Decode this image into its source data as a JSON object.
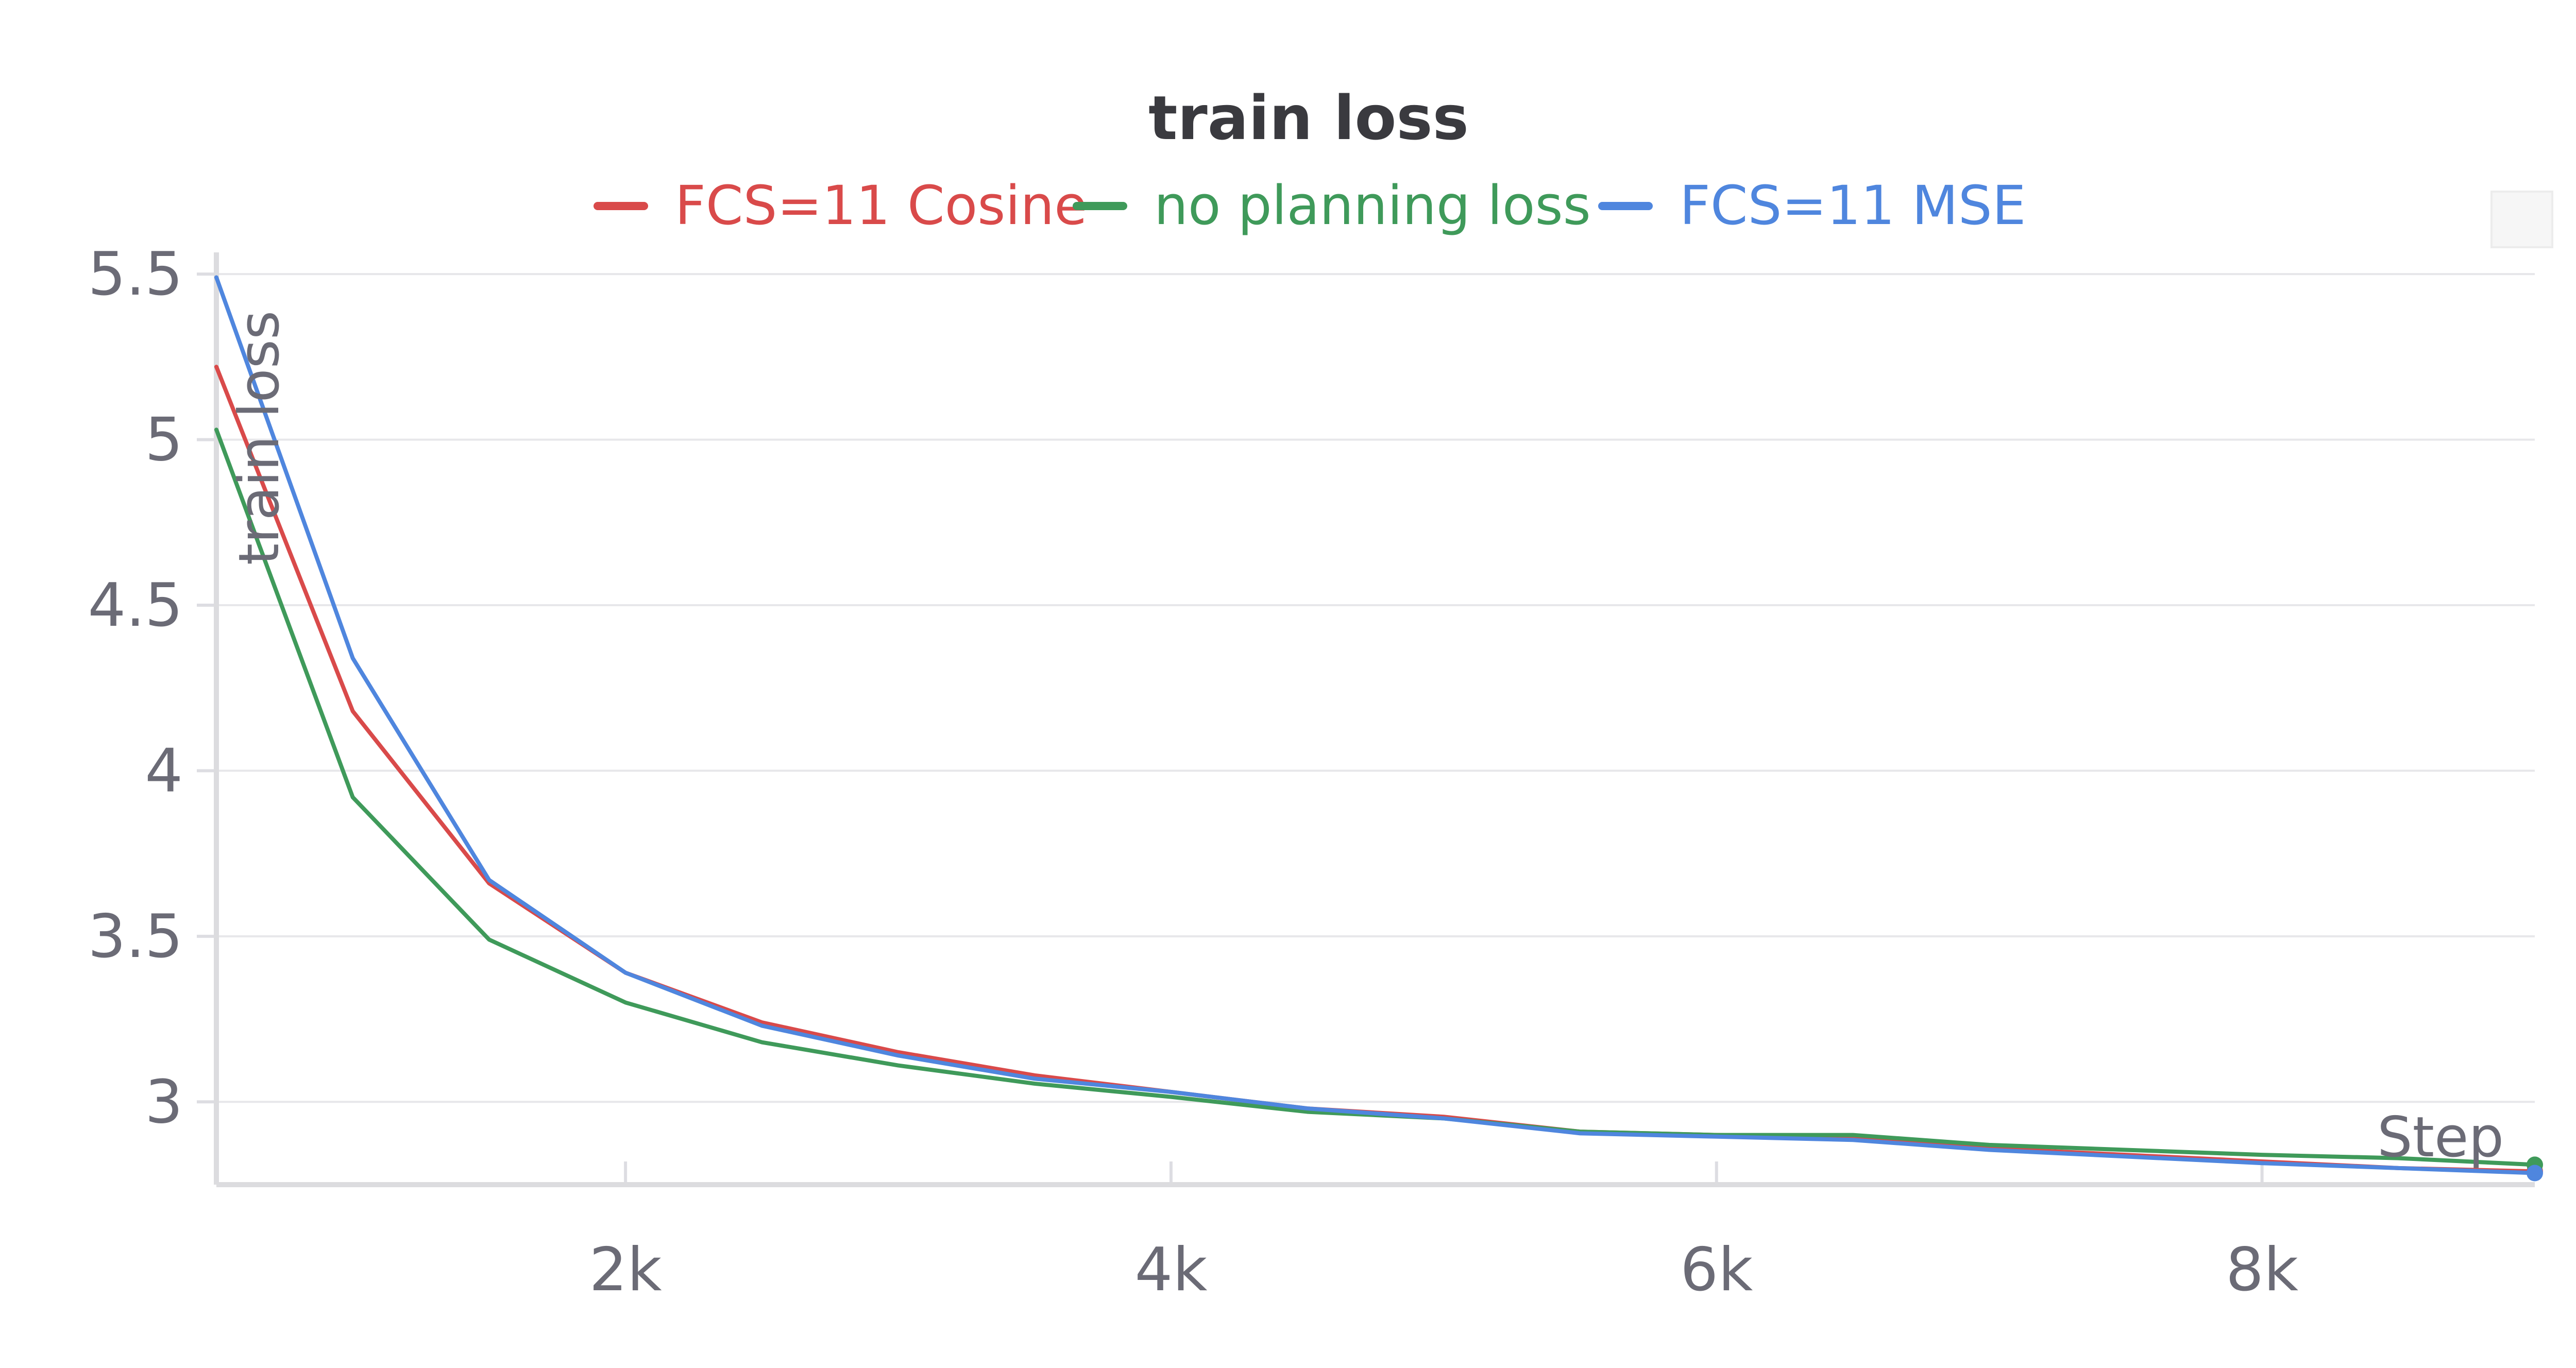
{
  "chart_data": {
    "type": "line",
    "title": "train loss",
    "xlabel": "Step",
    "ylabel": "train loss",
    "xlim": [
      500,
      9000
    ],
    "ylim": [
      2.75,
      5.55
    ],
    "x_ticks": [
      2000,
      4000,
      6000,
      8000
    ],
    "x_tick_labels": [
      "2k",
      "4k",
      "6k",
      "8k"
    ],
    "y_ticks": [
      3,
      3.5,
      4,
      4.5,
      5,
      5.5
    ],
    "y_tick_labels": [
      "3",
      "3.5",
      "4",
      "4.5",
      "5",
      "5.5"
    ],
    "grid": true,
    "legend_position": "top-center",
    "x": [
      500,
      1000,
      1500,
      2000,
      2500,
      3000,
      3500,
      4000,
      4500,
      5000,
      5500,
      6000,
      6500,
      7000,
      7500,
      8000,
      8500,
      9000
    ],
    "series": [
      {
        "name": "FCS=11 Cosine",
        "color": "#d94a4a",
        "values": [
          5.22,
          4.18,
          3.66,
          3.39,
          3.24,
          3.15,
          3.08,
          3.03,
          2.98,
          2.955,
          2.91,
          2.9,
          2.89,
          2.86,
          2.84,
          2.82,
          2.8,
          2.79
        ]
      },
      {
        "name": "no planning loss",
        "color": "#3f9a5a",
        "values": [
          5.03,
          3.92,
          3.49,
          3.3,
          3.18,
          3.11,
          3.055,
          3.015,
          2.97,
          2.95,
          2.91,
          2.9,
          2.9,
          2.87,
          2.855,
          2.84,
          2.83,
          2.81
        ]
      },
      {
        "name": "FCS=11 MSE",
        "color": "#4f86de",
        "values": [
          5.49,
          4.34,
          3.67,
          3.39,
          3.23,
          3.14,
          3.07,
          3.03,
          2.98,
          2.95,
          2.905,
          2.895,
          2.885,
          2.855,
          2.835,
          2.815,
          2.8,
          2.785
        ]
      }
    ]
  }
}
